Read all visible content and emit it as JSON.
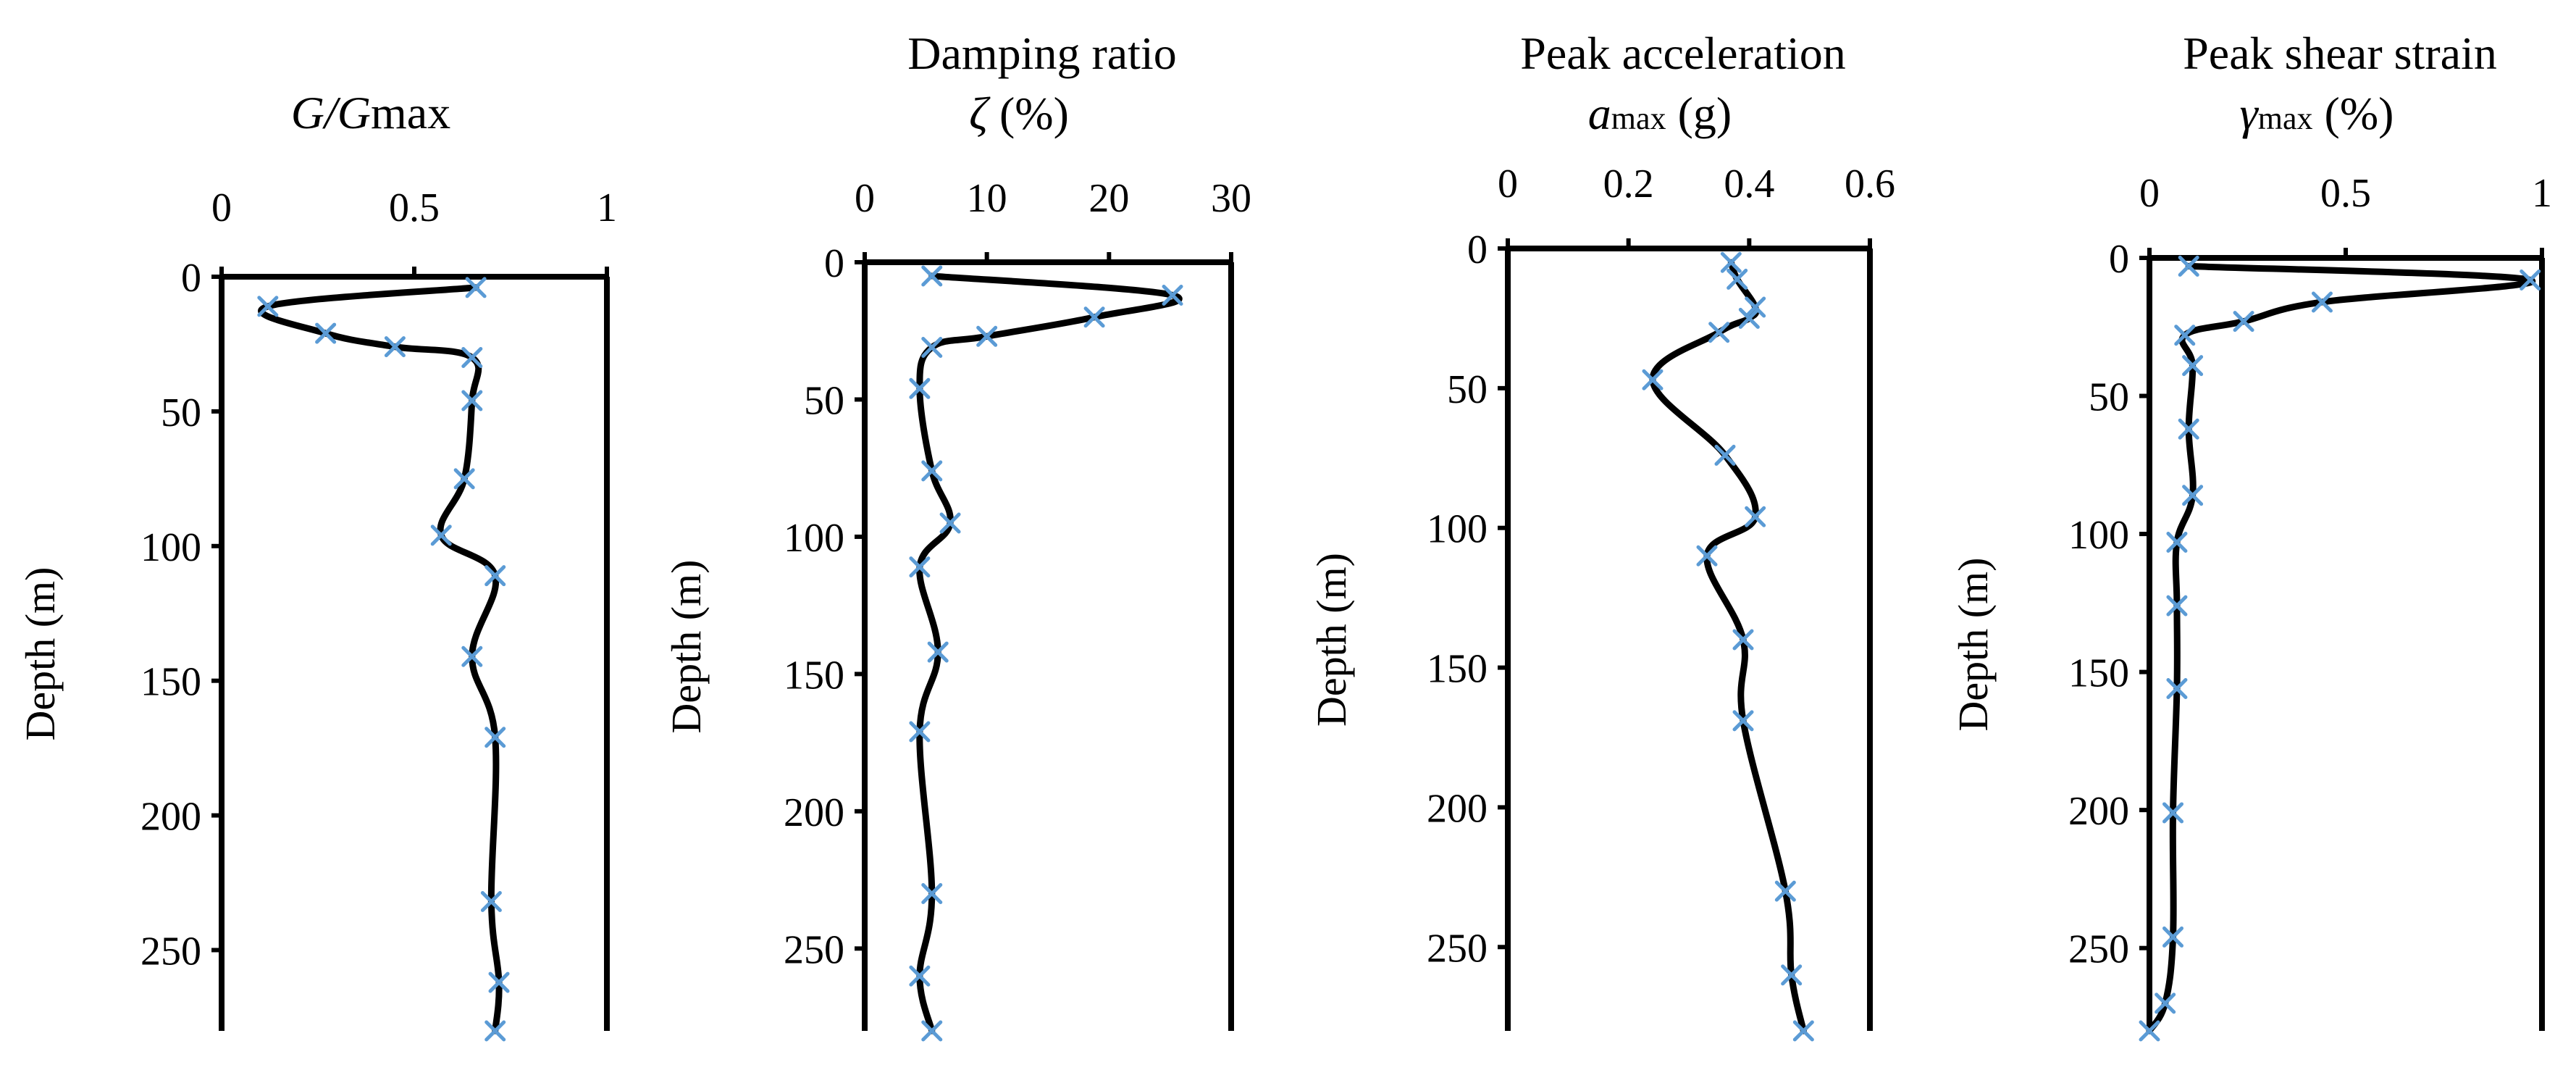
{
  "chart_data": [
    {
      "type": "line",
      "title_prefix": "",
      "title_main": "G/G",
      "title_sub": "max",
      "ylabel": "Depth (m)",
      "xlim": [
        0,
        1
      ],
      "ylim": [
        280,
        0
      ],
      "xticks": [
        0,
        0.5,
        1
      ],
      "xtick_labels": [
        "0",
        "0.5",
        "1"
      ],
      "yticks": [
        0,
        50,
        100,
        150,
        200,
        250
      ],
      "ytick_labels": [
        "0",
        "50",
        "100",
        "150",
        "200",
        "250"
      ],
      "marker_color": "#5b9bd5",
      "line_color": "#000000",
      "series": [
        {
          "name": "G/Gmax",
          "points": [
            [
              0.66,
              4
            ],
            [
              0.12,
              11
            ],
            [
              0.27,
              21
            ],
            [
              0.45,
              26
            ],
            [
              0.65,
              30
            ],
            [
              0.65,
              46
            ],
            [
              0.63,
              75
            ],
            [
              0.57,
              96
            ],
            [
              0.71,
              111
            ],
            [
              0.65,
              141
            ],
            [
              0.71,
              171
            ],
            [
              0.7,
              232
            ],
            [
              0.72,
              262
            ],
            [
              0.71,
              280
            ]
          ]
        }
      ]
    },
    {
      "type": "line",
      "title_prefix": "Damping ratio",
      "title_main": "ζ",
      "title_sub": " (%)",
      "ylabel": "Depth (m)",
      "xlim": [
        0,
        30
      ],
      "ylim": [
        280,
        0
      ],
      "xticks": [
        0,
        10,
        20,
        30
      ],
      "xtick_labels": [
        "0",
        "10",
        "20",
        "30"
      ],
      "yticks": [
        0,
        50,
        100,
        150,
        200,
        250
      ],
      "ytick_labels": [
        "0",
        "50",
        "100",
        "150",
        "200",
        "250"
      ],
      "marker_color": "#5b9bd5",
      "line_color": "#000000",
      "series": [
        {
          "name": "Damping ratio",
          "points": [
            [
              5.5,
              5
            ],
            [
              25.2,
              12
            ],
            [
              18.8,
              20
            ],
            [
              10.0,
              27
            ],
            [
              5.5,
              31
            ],
            [
              4.5,
              46
            ],
            [
              5.5,
              76
            ],
            [
              7.0,
              95
            ],
            [
              4.5,
              111
            ],
            [
              6.0,
              142
            ],
            [
              4.5,
              171
            ],
            [
              5.5,
              230
            ],
            [
              4.5,
              260
            ],
            [
              5.5,
              280
            ]
          ]
        }
      ]
    },
    {
      "type": "line",
      "title_prefix": "Peak acceleration",
      "title_main": "a",
      "title_sub": "max",
      "title_suffix": " (g)",
      "ylabel": "Depth (m)",
      "xlim": [
        0,
        0.6
      ],
      "ylim": [
        280,
        0
      ],
      "xticks": [
        0,
        0.2,
        0.4,
        0.6
      ],
      "xtick_labels": [
        "0",
        "0.2",
        "0.4",
        "0.6"
      ],
      "yticks": [
        0,
        50,
        100,
        150,
        200,
        250
      ],
      "ytick_labels": [
        "0",
        "50",
        "100",
        "150",
        "200",
        "250"
      ],
      "marker_color": "#5b9bd5",
      "line_color": "#000000",
      "series": [
        {
          "name": "Peak acceleration",
          "points": [
            [
              0.37,
              5
            ],
            [
              0.38,
              11
            ],
            [
              0.41,
              21
            ],
            [
              0.4,
              25
            ],
            [
              0.35,
              30
            ],
            [
              0.24,
              47
            ],
            [
              0.36,
              74
            ],
            [
              0.41,
              96
            ],
            [
              0.33,
              110
            ],
            [
              0.39,
              140
            ],
            [
              0.39,
              169
            ],
            [
              0.46,
              230
            ],
            [
              0.47,
              260
            ],
            [
              0.49,
              280
            ]
          ]
        }
      ]
    },
    {
      "type": "line",
      "title_prefix": "Peak shear strain",
      "title_main": "γ",
      "title_sub": "max",
      "title_suffix": " (%)",
      "ylabel": "Depth (m)",
      "xlim": [
        0,
        1
      ],
      "ylim": [
        280,
        0
      ],
      "xticks": [
        0,
        0.5,
        1
      ],
      "xtick_labels": [
        "0",
        "0.5",
        "1"
      ],
      "yticks": [
        0,
        50,
        100,
        150,
        200,
        250
      ],
      "ytick_labels": [
        "0",
        "50",
        "100",
        "150",
        "200",
        "250"
      ],
      "marker_color": "#5b9bd5",
      "line_color": "#000000",
      "series": [
        {
          "name": "Peak shear strain",
          "points": [
            [
              0.1,
              3
            ],
            [
              0.97,
              8
            ],
            [
              0.44,
              16
            ],
            [
              0.24,
              23
            ],
            [
              0.09,
              28
            ],
            [
              0.11,
              39
            ],
            [
              0.1,
              62
            ],
            [
              0.11,
              86
            ],
            [
              0.07,
              103
            ],
            [
              0.07,
              126
            ],
            [
              0.07,
              156
            ],
            [
              0.06,
              201
            ],
            [
              0.06,
              246
            ],
            [
              0.04,
              270
            ],
            [
              0.0,
              280
            ]
          ]
        }
      ]
    }
  ]
}
